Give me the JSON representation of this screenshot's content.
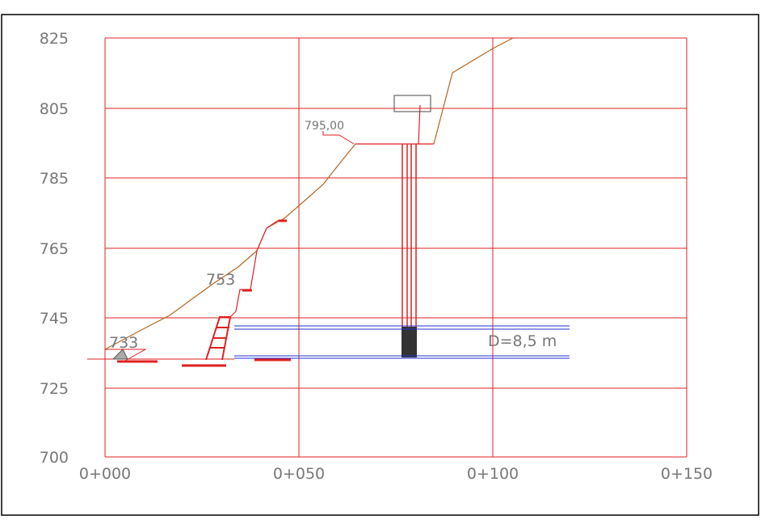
{
  "axes": {
    "y_labels": [
      "825",
      "805",
      "785",
      "765",
      "745",
      "725",
      "700"
    ],
    "x_labels": [
      "0+000",
      "0+050",
      "0+100",
      "0+150"
    ]
  },
  "annotations": {
    "bench_level": "795,00",
    "intake_level": "753",
    "river_level": "733",
    "tunnel_diameter": "D=8,5 m"
  }
}
